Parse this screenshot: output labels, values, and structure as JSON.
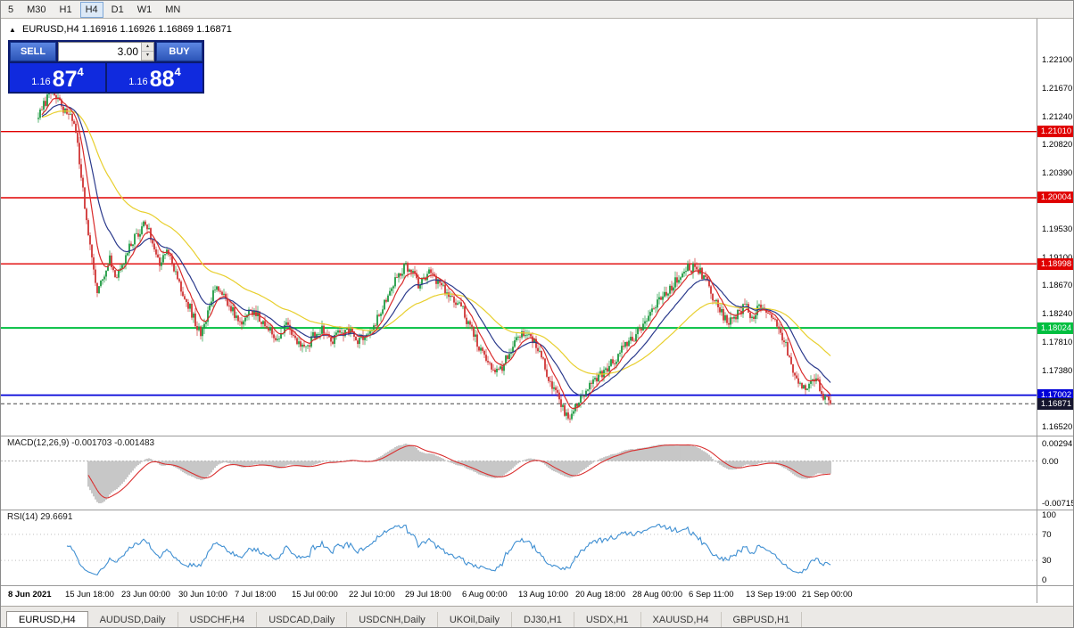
{
  "toolbar": {
    "timeframes": [
      {
        "label": "5",
        "active": false
      },
      {
        "label": "M30",
        "active": false
      },
      {
        "label": "H1",
        "active": false
      },
      {
        "label": "H4",
        "active": true
      },
      {
        "label": "D1",
        "active": false
      },
      {
        "label": "W1",
        "active": false
      },
      {
        "label": "MN",
        "active": false
      }
    ]
  },
  "chart": {
    "ohlc_title": "EURUSD,H4 1.16916 1.16926 1.16869 1.16871",
    "trade_panel": {
      "sell_label": "SELL",
      "buy_label": "BUY",
      "lot": "3.00",
      "sell_price": {
        "base": "1.16",
        "big": "87",
        "sup": "4"
      },
      "buy_price": {
        "base": "1.16",
        "big": "88",
        "sup": "4"
      }
    }
  },
  "chart_data": {
    "type": "candlestick",
    "symbol": "EURUSD",
    "timeframe": "H4",
    "current_bar": {
      "open": 1.16916,
      "high": 1.16926,
      "low": 1.16869,
      "close": 1.16871
    },
    "y_range": [
      1.164,
      1.227
    ],
    "price_labels": [
      "1.22100",
      "1.21670",
      "1.21240",
      "1.20820",
      "1.20390",
      "1.19960",
      "1.19530",
      "1.19100",
      "1.18670",
      "1.18240",
      "1.17810",
      "1.17380",
      "1.16950",
      "1.16520"
    ],
    "time_labels": [
      "8 Jun 2021",
      "15 Jun 18:00",
      "23 Jun 00:00",
      "30 Jun 10:00",
      "7 Jul 18:00",
      "15 Jul 00:00",
      "22 Jul 10:00",
      "29 Jul 18:00",
      "6 Aug 00:00",
      "13 Aug 10:00",
      "20 Aug 18:00",
      "28 Aug 00:00",
      "6 Sep 11:00",
      "13 Sep 19:00",
      "21 Sep 00:00"
    ],
    "price_path": [
      [
        42,
        1.212
      ],
      [
        50,
        1.2148
      ],
      [
        58,
        1.216
      ],
      [
        68,
        1.2138
      ],
      [
        78,
        1.212
      ],
      [
        84,
        1.21
      ],
      [
        90,
        1.203
      ],
      [
        96,
        1.1965
      ],
      [
        102,
        1.1905
      ],
      [
        108,
        1.1862
      ],
      [
        114,
        1.188
      ],
      [
        122,
        1.1905
      ],
      [
        130,
        1.1878
      ],
      [
        140,
        1.1912
      ],
      [
        150,
        1.194
      ],
      [
        162,
        1.1962
      ],
      [
        170,
        1.1935
      ],
      [
        178,
        1.1902
      ],
      [
        186,
        1.1922
      ],
      [
        196,
        1.1885
      ],
      [
        206,
        1.1852
      ],
      [
        216,
        1.1818
      ],
      [
        224,
        1.179
      ],
      [
        232,
        1.1828
      ],
      [
        240,
        1.1862
      ],
      [
        250,
        1.185
      ],
      [
        260,
        1.1828
      ],
      [
        270,
        1.1808
      ],
      [
        280,
        1.1832
      ],
      [
        290,
        1.1818
      ],
      [
        300,
        1.1798
      ],
      [
        310,
        1.1788
      ],
      [
        320,
        1.1808
      ],
      [
        330,
        1.178
      ],
      [
        340,
        1.1768
      ],
      [
        350,
        1.179
      ],
      [
        360,
        1.1802
      ],
      [
        370,
        1.178
      ],
      [
        380,
        1.1795
      ],
      [
        390,
        1.18
      ],
      [
        400,
        1.1785
      ],
      [
        410,
        1.1792
      ],
      [
        420,
        1.1812
      ],
      [
        430,
        1.1842
      ],
      [
        440,
        1.1872
      ],
      [
        450,
        1.1892
      ],
      [
        458,
        1.1896
      ],
      [
        468,
        1.187
      ],
      [
        478,
        1.1886
      ],
      [
        488,
        1.1875
      ],
      [
        498,
        1.1858
      ],
      [
        508,
        1.1848
      ],
      [
        518,
        1.1828
      ],
      [
        528,
        1.1798
      ],
      [
        538,
        1.1768
      ],
      [
        548,
        1.1748
      ],
      [
        558,
        1.1738
      ],
      [
        568,
        1.1756
      ],
      [
        578,
        1.1782
      ],
      [
        588,
        1.1795
      ],
      [
        598,
        1.1783
      ],
      [
        608,
        1.1748
      ],
      [
        618,
        1.1715
      ],
      [
        628,
        1.1688
      ],
      [
        636,
        1.1664
      ],
      [
        644,
        1.1682
      ],
      [
        652,
        1.1702
      ],
      [
        662,
        1.1718
      ],
      [
        672,
        1.1732
      ],
      [
        682,
        1.1746
      ],
      [
        692,
        1.1762
      ],
      [
        702,
        1.1778
      ],
      [
        712,
        1.1792
      ],
      [
        722,
        1.1812
      ],
      [
        732,
        1.1832
      ],
      [
        742,
        1.1852
      ],
      [
        752,
        1.1866
      ],
      [
        762,
        1.188
      ],
      [
        770,
        1.1892
      ],
      [
        778,
        1.1896
      ],
      [
        786,
        1.1884
      ],
      [
        794,
        1.1862
      ],
      [
        802,
        1.184
      ],
      [
        810,
        1.182
      ],
      [
        818,
        1.1812
      ],
      [
        826,
        1.1826
      ],
      [
        834,
        1.1836
      ],
      [
        842,
        1.182
      ],
      [
        850,
        1.1832
      ],
      [
        858,
        1.1824
      ],
      [
        866,
        1.1814
      ],
      [
        874,
        1.1798
      ],
      [
        882,
        1.1768
      ],
      [
        890,
        1.173
      ],
      [
        898,
        1.1706
      ],
      [
        906,
        1.1716
      ],
      [
        914,
        1.1724
      ],
      [
        922,
        1.1698
      ],
      [
        930,
        1.1687
      ]
    ],
    "hlines": [
      {
        "price": 1.2101,
        "label": "1.21010",
        "color": "#e00000",
        "width": 1.4
      },
      {
        "price": 1.20004,
        "label": "1.20004",
        "color": "#e00000",
        "width": 1.4
      },
      {
        "price": 1.18998,
        "label": "1.18998",
        "color": "#e00000",
        "width": 1.4
      },
      {
        "price": 1.18024,
        "label": "1.18024",
        "color": "#00bf40",
        "width": 2
      },
      {
        "price": 1.17002,
        "label": "1.17002",
        "color": "#0000d8",
        "width": 1.8
      }
    ],
    "current_price": {
      "value": 1.16871,
      "label": "1.16871",
      "color": "#15152e"
    },
    "moving_averages": [
      {
        "name": "slow",
        "period": 58,
        "color": "#e8cf2e"
      },
      {
        "name": "medium",
        "period": 22,
        "color": "#2b3a8c"
      },
      {
        "name": "fast",
        "period": 9,
        "color": "#d92b2b"
      }
    ],
    "macd": {
      "label": "MACD(12,26,9) -0.001703 -0.001483",
      "fast": 12,
      "slow": 26,
      "signal": 9,
      "value": -0.001703,
      "signal_value": -0.001483,
      "axis_values": [
        0.00294,
        0,
        -0.00715
      ],
      "axis_labels": [
        "0.00294",
        "0.00",
        "-0.00715"
      ],
      "hist_color": "#bdbdbd",
      "signal_color": "#d93030"
    },
    "rsi": {
      "label": "RSI(14) 29.6691",
      "period": 14,
      "value": 29.6691,
      "levels": [
        70,
        30
      ],
      "axis_labels": [
        "100",
        "70",
        "30",
        "0"
      ],
      "color": "#3f8fd2"
    },
    "candle_up_color": "#1f9b42",
    "candle_down_color": "#cf3434"
  },
  "tabs": [
    {
      "label": "EURUSD,H4",
      "active": true
    },
    {
      "label": "AUDUSD,Daily",
      "active": false
    },
    {
      "label": "USDCHF,H4",
      "active": false
    },
    {
      "label": "USDCAD,Daily",
      "active": false
    },
    {
      "label": "USDCNH,Daily",
      "active": false
    },
    {
      "label": "UKOil,Daily",
      "active": false
    },
    {
      "label": "DJ30,H1",
      "active": false
    },
    {
      "label": "USDX,H1",
      "active": false
    },
    {
      "label": "XAUUSD,H4",
      "active": false
    },
    {
      "label": "GBPUSD,H1",
      "active": false
    }
  ]
}
